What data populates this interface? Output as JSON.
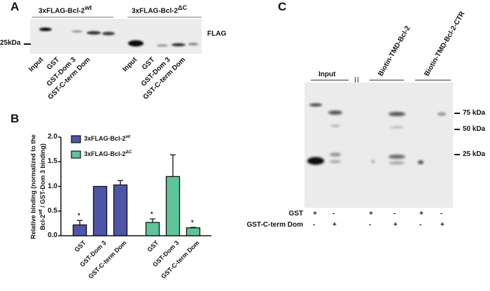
{
  "panelA": {
    "label": "A",
    "groups": [
      "3xFLAG-Bcl-2",
      "3xFLAG-Bcl-2"
    ],
    "group_sup": [
      "wt",
      "ΔC"
    ],
    "antibody": "FLAG",
    "marker": "25kDa",
    "lanes": [
      "Input",
      "GST",
      "GST-Dom 3",
      "GST-C-term Dom",
      "Input",
      "GST",
      "GST-Dom 3",
      "GST-C-term Dom"
    ]
  },
  "panelB": {
    "label": "B"
  },
  "chart_data": {
    "type": "bar",
    "ylabel": "Relative binding (normalized to the Bcl-2wt / GST-Dom 3 binding)",
    "ylabel_line1": "Relative binding (normalized to the",
    "ylabel_line2_pre": "Bcl-2",
    "ylabel_line2_sup": "wt",
    "ylabel_line2_post": " / GST-Dom 3 binding)",
    "ylim": [
      0,
      2.0
    ],
    "yticks": [
      "0.0",
      "0.5",
      "1.0",
      "1.5",
      "2.0"
    ],
    "categories": [
      "GST",
      "GST-Dom 3",
      "GST-C-term Dom"
    ],
    "series": [
      {
        "name": "3xFLAG-Bcl-2wt",
        "legend_pre": "3xFLAG-Bcl-2",
        "legend_sup": "wt",
        "color": "#4f55a8",
        "values": [
          0.22,
          1.0,
          1.03
        ],
        "errors": [
          0.09,
          0,
          0.09
        ],
        "significance": [
          "*",
          "",
          ""
        ]
      },
      {
        "name": "3xFLAG-Bcl-2ΔC",
        "legend_pre": "3xFLAG-Bcl-2",
        "legend_sup": "ΔC",
        "color": "#5ec49a",
        "values": [
          0.27,
          1.2,
          0.16
        ],
        "errors": [
          0.07,
          0.44,
          0.01
        ],
        "significance": [
          "*",
          "",
          "*"
        ]
      }
    ],
    "legend": "top-left",
    "grid": false
  },
  "panelC": {
    "label": "C",
    "input": "Input",
    "groups": [
      "Biotin-TMD-Bcl-2",
      "Biotin-TMD-Bcl-2-CTR"
    ],
    "markers": [
      "75 kDa",
      "50 kDa",
      "25 kDa"
    ],
    "rows": [
      {
        "label": "GST",
        "values": [
          "+",
          "-",
          "+",
          "-",
          "+",
          "-"
        ]
      },
      {
        "label": "GST-C-term Dom",
        "values": [
          "-",
          "+",
          "-",
          "+",
          "-",
          "+"
        ]
      }
    ]
  }
}
